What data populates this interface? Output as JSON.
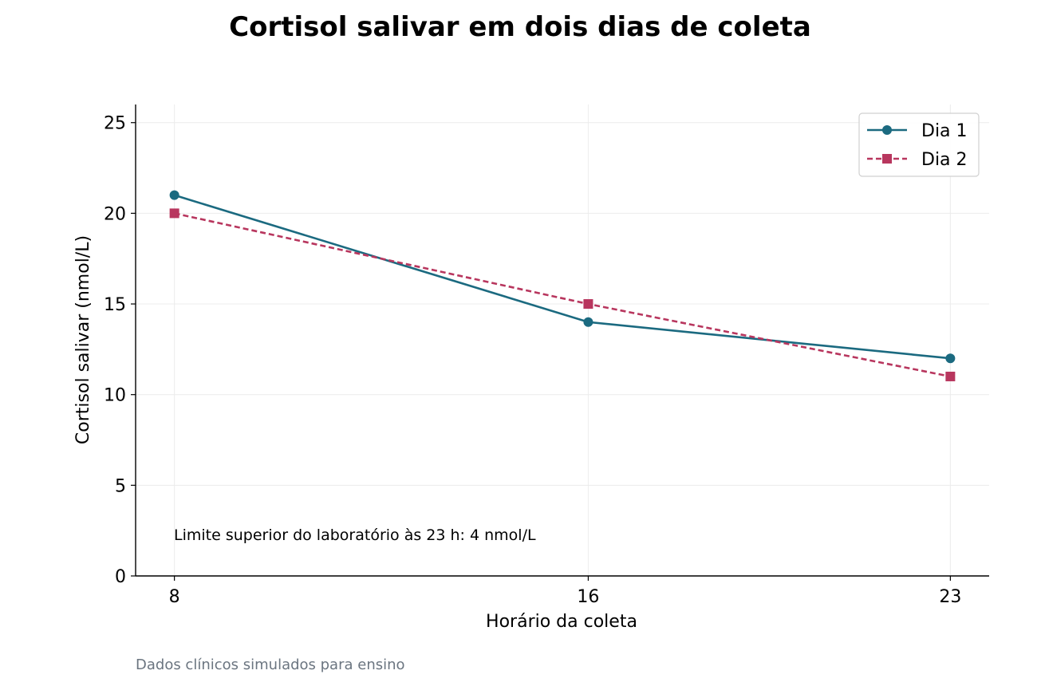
{
  "chart_data": {
    "type": "line",
    "title": "Cortisol salivar em dois dias de coleta",
    "xlabel": "Horário da coleta",
    "ylabel": "Cortisol salivar (nmol/L)",
    "x": [
      8,
      16,
      23
    ],
    "x_tick_labels": [
      "8",
      "16",
      "23"
    ],
    "xlim": [
      7.25,
      23.75
    ],
    "ylim": [
      0,
      26
    ],
    "y_ticks": [
      0,
      5,
      10,
      15,
      20,
      25
    ],
    "series": [
      {
        "name": "Dia 1",
        "values": [
          21,
          14,
          12
        ],
        "color": "#1b6a80",
        "marker": "circle",
        "line_style": "solid"
      },
      {
        "name": "Dia 2",
        "values": [
          20,
          15,
          11
        ],
        "color": "#b8365e",
        "marker": "square",
        "line_style": "dashed"
      }
    ],
    "annotation": "Limite superior do laboratório às 23 h: 4 nmol/L",
    "footnote": "Dados clínicos simulados para ensino",
    "grid": true,
    "legend_position": "top-right"
  }
}
